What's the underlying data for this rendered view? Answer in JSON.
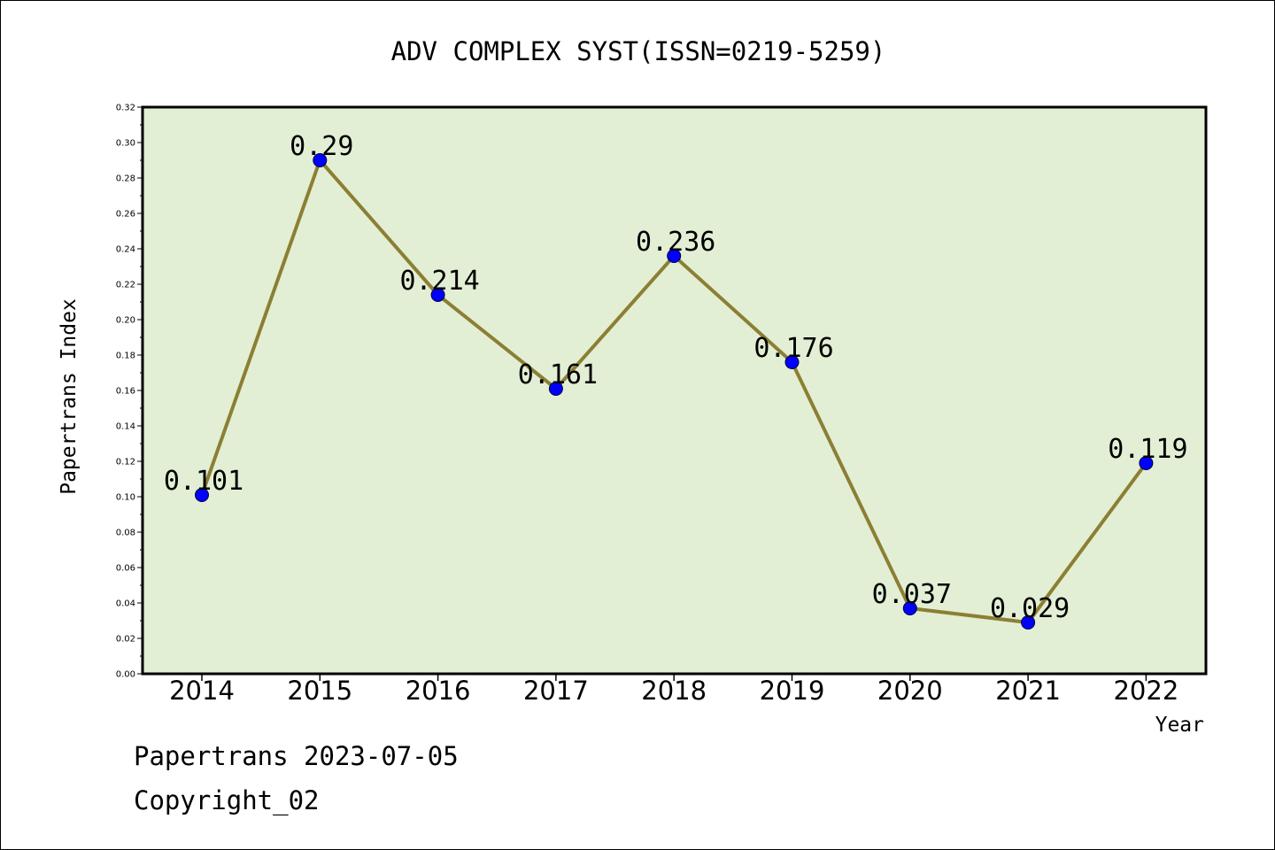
{
  "chart_data": {
    "type": "line",
    "title": "ADV COMPLEX SYST(ISSN=0219-5259)",
    "xlabel": "Year",
    "ylabel": "Papertrans Index",
    "categories": [
      "2014",
      "2015",
      "2016",
      "2017",
      "2018",
      "2019",
      "2020",
      "2021",
      "2022"
    ],
    "values": [
      0.101,
      0.29,
      0.214,
      0.161,
      0.236,
      0.176,
      0.037,
      0.029,
      0.119
    ],
    "data_labels": [
      "0.101",
      "0.29",
      "0.214",
      "0.161",
      "0.236",
      "0.176",
      "0.037",
      "0.029",
      "0.119"
    ],
    "ylim": [
      0,
      0.32
    ],
    "yticks": [
      "0.00",
      "0.02",
      "0.04",
      "0.06",
      "0.08",
      "0.10",
      "0.12",
      "0.14",
      "0.16",
      "0.18",
      "0.20",
      "0.22",
      "0.24",
      "0.26",
      "0.28",
      "0.30",
      "0.32"
    ],
    "grid": false,
    "legend": "none",
    "colors": {
      "plot_background": "#e2efd5",
      "line": "#8b7f33",
      "marker": "#0000ff"
    }
  },
  "footer": {
    "date_line": "Papertrans 2023-07-05",
    "copyright": "Copyright_02"
  }
}
